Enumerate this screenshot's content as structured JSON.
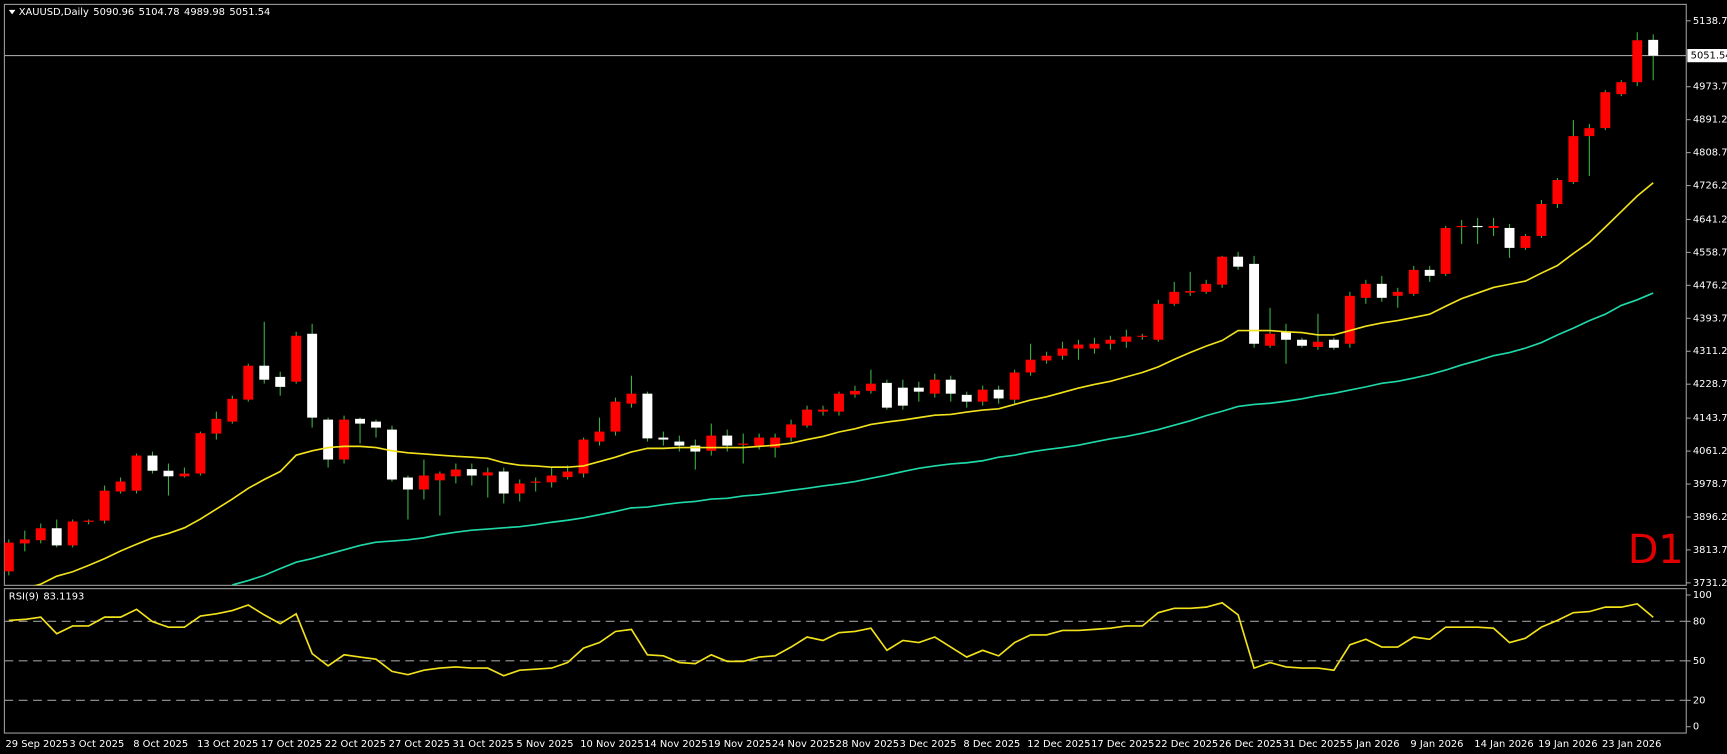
{
  "chart_data": [
    {
      "type": "candlestick",
      "title": "XAUUSD,Daily",
      "annotation": "D1",
      "categories": [
        "29 Sep 2025",
        null,
        null,
        null,
        "3 Oct 2025",
        null,
        null,
        null,
        "8 Oct 2025",
        null,
        null,
        null,
        "13 Oct 2025",
        null,
        null,
        null,
        "17 Oct 2025",
        null,
        null,
        null,
        "22 Oct 2025",
        null,
        null,
        null,
        "27 Oct 2025",
        null,
        null,
        null,
        "31 Oct 2025",
        null,
        null,
        null,
        "5 Nov 2025",
        null,
        null,
        null,
        "10 Nov 2025",
        null,
        null,
        null,
        "14 Nov 2025",
        null,
        null,
        null,
        "19 Nov 2025",
        null,
        null,
        null,
        "24 Nov 2025",
        null,
        null,
        null,
        "28 Nov 2025",
        null,
        null,
        null,
        "3 Dec 2025",
        null,
        null,
        null,
        "8 Dec 2025",
        null,
        null,
        null,
        "12 Dec 2025",
        null,
        null,
        null,
        "17 Dec 2025",
        null,
        null,
        null,
        "22 Dec 2025",
        null,
        null,
        null,
        "26 Dec 2025",
        null,
        null,
        null,
        "31 Dec 2025",
        null,
        null,
        null,
        "5 Jan 2026",
        null,
        null,
        null,
        "9 Jan 2026",
        null,
        null,
        null,
        "14 Jan 2026",
        null,
        null,
        null,
        "19 Jan 2026",
        null,
        null,
        null,
        "23 Jan 2026",
        null,
        null,
        null
      ],
      "open": [
        3760,
        3830,
        3838,
        3868,
        3825,
        3884,
        3887,
        3960,
        3962,
        4050,
        4012,
        3998,
        4005,
        4105,
        4135,
        4190,
        4275,
        4247,
        4235,
        4355,
        4140,
        4040,
        4142,
        4135,
        4115,
        3995,
        3965,
        3988,
        3998,
        4016,
        4000,
        4010,
        3955,
        3982,
        3983,
        3996,
        4005,
        4085,
        4110,
        4180,
        4205,
        4095,
        4085,
        4075,
        4062,
        4100,
        4077,
        4075,
        4070,
        4095,
        4125,
        4160,
        4160,
        4203,
        4212,
        4232,
        4220,
        4220,
        4205,
        4240,
        4202,
        4185,
        4215,
        4190,
        4258,
        4288,
        4300,
        4318,
        4318,
        4330,
        4335,
        4348,
        4340,
        4430,
        4458,
        4460,
        4478,
        4548,
        4530,
        4325,
        4360,
        4340,
        4322,
        4340,
        4330,
        4445,
        4480,
        4450,
        4455,
        4515,
        4505,
        4622,
        4625,
        4620,
        4620,
        4570,
        4600,
        4680,
        4735,
        4850,
        4870,
        4955,
        4985,
        5090.96
      ],
      "high": [
        3840,
        3862,
        3880,
        3890,
        3890,
        3890,
        3975,
        3995,
        4055,
        4060,
        4030,
        4020,
        4110,
        4160,
        4200,
        4280,
        4385,
        4260,
        4360,
        4380,
        4145,
        4150,
        4145,
        4140,
        4125,
        4000,
        4040,
        4010,
        4030,
        4030,
        4020,
        4020,
        3990,
        3995,
        4020,
        4025,
        4095,
        4145,
        4195,
        4250,
        4210,
        4110,
        4100,
        4090,
        4130,
        4115,
        4105,
        4105,
        4105,
        4140,
        4175,
        4175,
        4210,
        4225,
        4265,
        4240,
        4240,
        4235,
        4255,
        4250,
        4210,
        4225,
        4225,
        4265,
        4330,
        4310,
        4335,
        4340,
        4345,
        4350,
        4365,
        4355,
        4440,
        4485,
        4510,
        4490,
        4550,
        4560,
        4550,
        4420,
        4380,
        4345,
        4405,
        4345,
        4460,
        4490,
        4500,
        4470,
        4525,
        4525,
        4625,
        4640,
        4645,
        4645,
        4630,
        4605,
        4690,
        4745,
        4890,
        4880,
        4965,
        4990,
        5110,
        5104.78
      ],
      "low": [
        3750,
        3810,
        3830,
        3820,
        3820,
        3878,
        3880,
        3955,
        3955,
        4005,
        3950,
        3995,
        4000,
        4090,
        4130,
        4185,
        4230,
        4200,
        4230,
        4120,
        4020,
        4030,
        4080,
        4095,
        3985,
        3890,
        3940,
        3900,
        3980,
        3975,
        3945,
        3930,
        3935,
        3960,
        3970,
        3990,
        3995,
        4075,
        4100,
        4170,
        4085,
        4075,
        4060,
        4015,
        4050,
        4060,
        4030,
        4065,
        4045,
        4085,
        4120,
        4150,
        4150,
        4195,
        4205,
        4165,
        4165,
        4185,
        4195,
        4185,
        4170,
        4175,
        4180,
        4180,
        4250,
        4280,
        4290,
        4290,
        4305,
        4315,
        4320,
        4340,
        4335,
        4425,
        4450,
        4455,
        4470,
        4515,
        4320,
        4320,
        4280,
        4320,
        4315,
        4315,
        4320,
        4430,
        4435,
        4420,
        4450,
        4485,
        4500,
        4580,
        4580,
        4600,
        4545,
        4565,
        4595,
        4670,
        4730,
        4750,
        4865,
        4950,
        4975,
        4989.98
      ],
      "close": [
        3832,
        3840,
        3868,
        3825,
        3885,
        3887,
        3962,
        3985,
        4050,
        4012,
        3998,
        4005,
        4106,
        4142,
        4192,
        4275,
        4240,
        4222,
        4350,
        4145,
        4040,
        4140,
        4130,
        4120,
        3990,
        3965,
        4000,
        4005,
        4015,
        4000,
        4008,
        3955,
        3980,
        3985,
        4000,
        4010,
        4090,
        4110,
        4185,
        4205,
        4093,
        4090,
        4075,
        4060,
        4100,
        4075,
        4080,
        4095,
        4095,
        4128,
        4165,
        4165,
        4205,
        4212,
        4230,
        4170,
        4175,
        4210,
        4240,
        4205,
        4185,
        4215,
        4193,
        4258,
        4290,
        4300,
        4318,
        4328,
        4330,
        4340,
        4348,
        4350,
        4430,
        4460,
        4462,
        4480,
        4548,
        4523,
        4330,
        4355,
        4340,
        4325,
        4335,
        4320,
        4450,
        4480,
        4445,
        4460,
        4515,
        4500,
        4620,
        4625,
        4622,
        4625,
        4570,
        4600,
        4680,
        4740,
        4850,
        4870,
        4960,
        4985,
        5090,
        5051.54
      ],
      "up_color": "#ff0000",
      "down_color": "#ffffff",
      "wick_color": "#3cb043",
      "series": [
        {
          "color": "#f2e21c",
          "values": [
            3706,
            3717,
            3728,
            3748,
            3759,
            3775,
            3792,
            3811,
            3828,
            3844,
            3855,
            3869,
            3891,
            3916,
            3941,
            3968,
            3990,
            4010,
            4051,
            4062,
            4070,
            4073,
            4073,
            4070,
            4062,
            4057,
            4054,
            4051,
            4048,
            4046,
            4043,
            4032,
            4026,
            4024,
            4021,
            4021,
            4024,
            4035,
            4046,
            4059,
            4068,
            4068,
            4070,
            4070,
            4070,
            4070,
            4070,
            4073,
            4076,
            4081,
            4090,
            4098,
            4109,
            4117,
            4128,
            4134,
            4139,
            4145,
            4151,
            4153,
            4159,
            4164,
            4167,
            4178,
            4189,
            4197,
            4208,
            4219,
            4228,
            4236,
            4247,
            4258,
            4272,
            4291,
            4308,
            4324,
            4338,
            4363,
            4363,
            4363,
            4360,
            4358,
            4352,
            4352,
            4363,
            4374,
            4382,
            4388,
            4396,
            4404,
            4424,
            4443,
            4457,
            4471,
            4479,
            4487,
            4507,
            4526,
            4556,
            4584,
            4622,
            4661,
            4700,
            4733
          ]
        },
        {
          "color": "#1fd8a8",
          "values": [
            null,
            null,
            null,
            null,
            null,
            null,
            null,
            null,
            null,
            null,
            null,
            null,
            null,
            null,
            3726,
            3737,
            3750,
            3767,
            3783,
            3792,
            3803,
            3814,
            3825,
            3833,
            3836,
            3839,
            3844,
            3852,
            3858,
            3863,
            3866,
            3869,
            3872,
            3877,
            3883,
            3888,
            3894,
            3902,
            3910,
            3919,
            3921,
            3927,
            3932,
            3935,
            3941,
            3943,
            3949,
            3952,
            3957,
            3963,
            3968,
            3974,
            3979,
            3985,
            3993,
            4001,
            4010,
            4018,
            4024,
            4029,
            4032,
            4037,
            4046,
            4051,
            4059,
            4065,
            4070,
            4076,
            4084,
            4092,
            4098,
            4106,
            4115,
            4126,
            4137,
            4150,
            4161,
            4173,
            4178,
            4181,
            4186,
            4192,
            4200,
            4206,
            4214,
            4222,
            4231,
            4236,
            4244,
            4253,
            4264,
            4277,
            4288,
            4300,
            4308,
            4319,
            4333,
            4352,
            4369,
            4388,
            4404,
            4426,
            4440,
            4457
          ]
        }
      ],
      "price_line": 5051.54,
      "ylim": [
        3725,
        5177
      ],
      "yticks": [
        {
          "value": 5138.7,
          "label": "5138.70"
        },
        {
          "value": 4973.7,
          "label": "4973.70"
        },
        {
          "value": 4891.2,
          "label": "4891.20"
        },
        {
          "value": 4808.7,
          "label": "4808.70"
        },
        {
          "value": 4726.2,
          "label": "4726.20"
        },
        {
          "value": 4641.2,
          "label": "4641.20"
        },
        {
          "value": 4558.7,
          "label": "4558.70"
        },
        {
          "value": 4476.2,
          "label": "4476.20"
        },
        {
          "value": 4393.7,
          "label": "4393.70"
        },
        {
          "value": 4311.2,
          "label": "4311.20"
        },
        {
          "value": 4228.7,
          "label": "4228.70"
        },
        {
          "value": 4143.7,
          "label": "4143.70"
        },
        {
          "value": 4061.2,
          "label": "4061.20"
        },
        {
          "value": 3978.7,
          "label": "3978.70"
        },
        {
          "value": 3896.2,
          "label": "3896.20"
        },
        {
          "value": 3813.7,
          "label": "3813.70"
        },
        {
          "value": 3731.2,
          "label": "3731.20"
        }
      ]
    },
    {
      "type": "line",
      "title": "RSI(9)",
      "series": [
        {
          "color": "#f2e21c",
          "values": [
            80.7,
            81.5,
            83.2,
            70.6,
            76.5,
            76.5,
            83.2,
            83.2,
            89.1,
            79.8,
            75.6,
            75.6,
            84.0,
            85.7,
            88.2,
            92.4,
            84.9,
            78.2,
            85.7,
            55.5,
            46.2,
            54.6,
            52.9,
            51.3,
            42.0,
            39.5,
            42.9,
            44.5,
            45.4,
            44.5,
            44.5,
            38.7,
            42.9,
            43.7,
            44.5,
            48.7,
            59.7,
            63.9,
            72.3,
            73.9,
            54.6,
            53.8,
            48.7,
            47.9,
            54.6,
            49.6,
            49.6,
            52.9,
            53.8,
            60.5,
            68.1,
            65.5,
            71.4,
            72.3,
            74.8,
            58.0,
            65.5,
            63.9,
            68.1,
            60.5,
            52.9,
            58.0,
            53.8,
            63.9,
            69.7,
            69.7,
            73.1,
            73.1,
            73.9,
            74.8,
            76.5,
            76.5,
            86.6,
            89.9,
            89.9,
            90.8,
            94.1,
            84.9,
            44.5,
            48.7,
            45.4,
            44.5,
            44.5,
            42.9,
            62.2,
            66.4,
            60.5,
            60.5,
            68.1,
            66.4,
            75.6,
            75.6,
            75.6,
            74.8,
            63.9,
            67.2,
            75.6,
            80.7,
            86.6,
            87.4,
            90.8,
            90.8,
            93.3,
            83.1193
          ]
        }
      ],
      "levels": [
        80,
        50,
        20
      ],
      "ylim": [
        -4,
        104
      ],
      "yticks": [
        100,
        80,
        50,
        20,
        0
      ]
    }
  ]
}
